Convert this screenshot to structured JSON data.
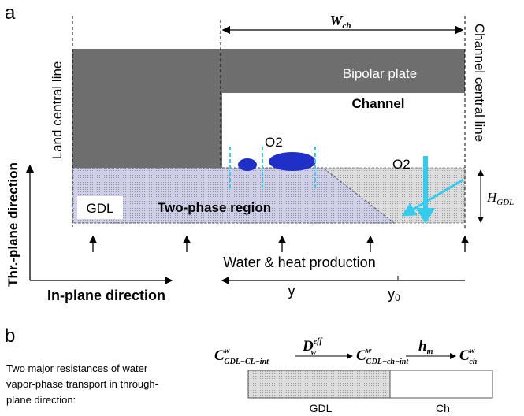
{
  "panel_a": {
    "label": "a",
    "width": {
      "base": "W",
      "sub": "ch"
    },
    "land_line": "Land central line",
    "channel_line": "Channel central line",
    "bipolar_plate": "Bipolar plate",
    "channel": "Channel",
    "o2_left": "O2",
    "o2_right": "O2",
    "through_plane": "Thr.-plane direction",
    "gdl": "GDL",
    "two_phase": "Two-phase region",
    "gdl_thickness": {
      "base": "H",
      "sub": "GDL"
    },
    "production": "Water & heat production",
    "in_plane": "In-plane direction",
    "y": "y",
    "y0": {
      "base": "y",
      "sub": "0"
    }
  },
  "panel_b": {
    "label": "b",
    "description": [
      "Two major resistances of water",
      "vapor-phase transport in through-",
      "plane direction:"
    ],
    "c_cl": {
      "base": "C",
      "sup": "w",
      "sub": "GDL−CL−int"
    },
    "diffusivity": {
      "base": "D",
      "sup": "eff",
      "sub": "w"
    },
    "c_ch_int": {
      "base": "C",
      "sup": "w",
      "sub": "GDL−ch−int"
    },
    "mass_transfer": {
      "base": "h",
      "sub": "m"
    },
    "c_ch": {
      "base": "C",
      "sup": "w",
      "sub": "ch"
    },
    "gdl": "GDL",
    "ch": "Ch"
  }
}
